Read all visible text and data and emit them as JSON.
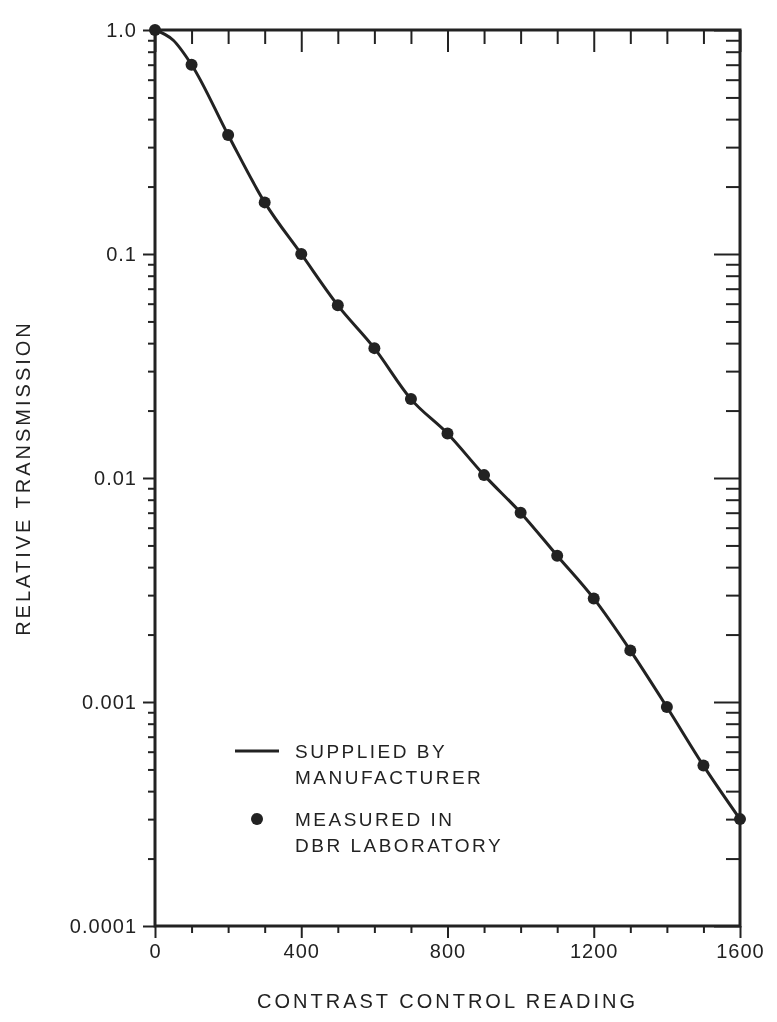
{
  "chart_data": {
    "type": "line",
    "xlabel": "CONTRAST CONTROL READING",
    "ylabel": "RELATIVE TRANSMISSION",
    "log": "y",
    "xlim": [
      0,
      1600
    ],
    "ylim": [
      0.0001,
      1
    ],
    "xticks": [
      0,
      {
        "value": 100,
        "label": null
      },
      {
        "value": 200,
        "label": null
      },
      {
        "value": 300,
        "label": null
      },
      400,
      {
        "value": 500,
        "label": null
      },
      {
        "value": 600,
        "label": null
      },
      {
        "value": 700,
        "label": null
      },
      800,
      {
        "value": 900,
        "label": null
      },
      {
        "value": 1000,
        "label": null
      },
      {
        "value": 1100,
        "label": null
      },
      1200,
      {
        "value": 1300,
        "label": null
      },
      {
        "value": 1400,
        "label": null
      },
      {
        "value": 1500,
        "label": null
      },
      1600
    ],
    "yticks": [
      0.0001,
      {
        "value": 0.0002,
        "label": null
      },
      {
        "value": 0.0003,
        "label": null
      },
      {
        "value": 0.0004,
        "label": null
      },
      {
        "value": 0.0005,
        "label": null
      },
      {
        "value": 0.0006,
        "label": null
      },
      {
        "value": 0.0007,
        "label": null
      },
      {
        "value": 0.0008,
        "label": null
      },
      {
        "value": 0.0009,
        "label": null
      },
      0.001,
      {
        "value": 0.002,
        "label": null
      },
      {
        "value": 0.003,
        "label": null
      },
      {
        "value": 0.004,
        "label": null
      },
      {
        "value": 0.005,
        "label": null
      },
      {
        "value": 0.006,
        "label": null
      },
      {
        "value": 0.007,
        "label": null
      },
      {
        "value": 0.008,
        "label": null
      },
      {
        "value": 0.009,
        "label": null
      },
      0.01,
      {
        "value": 0.02,
        "label": null
      },
      {
        "value": 0.03,
        "label": null
      },
      {
        "value": 0.04,
        "label": null
      },
      {
        "value": 0.05,
        "label": null
      },
      {
        "value": 0.06,
        "label": null
      },
      {
        "value": 0.07,
        "label": null
      },
      {
        "value": 0.08,
        "label": null
      },
      {
        "value": 0.09,
        "label": null
      },
      0.1,
      {
        "value": 0.2,
        "label": null
      },
      {
        "value": 0.3,
        "label": null
      },
      {
        "value": 0.4,
        "label": null
      },
      {
        "value": 0.5,
        "label": null
      },
      {
        "value": 0.6,
        "label": null
      },
      {
        "value": 0.7,
        "label": null
      },
      {
        "value": 0.8,
        "label": null
      },
      {
        "value": 0.9,
        "label": null
      },
      {
        "value": 1,
        "label": "1.0"
      }
    ],
    "grid": false,
    "legend": "bottom",
    "series": [
      {
        "name": "SUPPLIED BY MANUFACTURER",
        "type": "line",
        "marker": "none",
        "line_style": "solid",
        "color": "#222222",
        "x": [
          0,
          50,
          100,
          200,
          300,
          400,
          500,
          600,
          700,
          800,
          900,
          1000,
          1100,
          1200,
          1300,
          1400,
          1500,
          1600
        ],
        "values": [
          1.0,
          0.9,
          0.7,
          0.34,
          0.17,
          0.1,
          0.059,
          0.038,
          0.0225,
          0.0158,
          0.0103,
          0.007,
          0.0045,
          0.0029,
          0.0017,
          0.00095,
          0.00052,
          0.0003
        ]
      },
      {
        "name": "MEASURED IN DBR LABORATORY",
        "type": "scatter",
        "marker": "circle",
        "color": "#222222",
        "x": [
          0,
          100,
          200,
          300,
          400,
          500,
          600,
          700,
          800,
          900,
          1000,
          1100,
          1200,
          1300,
          1400,
          1500,
          1600
        ],
        "values": [
          1.0,
          0.7,
          0.34,
          0.17,
          0.1,
          0.059,
          0.038,
          0.0225,
          0.0158,
          0.0103,
          0.007,
          0.0045,
          0.0029,
          0.0017,
          0.00095,
          0.00052,
          0.0003
        ]
      }
    ]
  }
}
